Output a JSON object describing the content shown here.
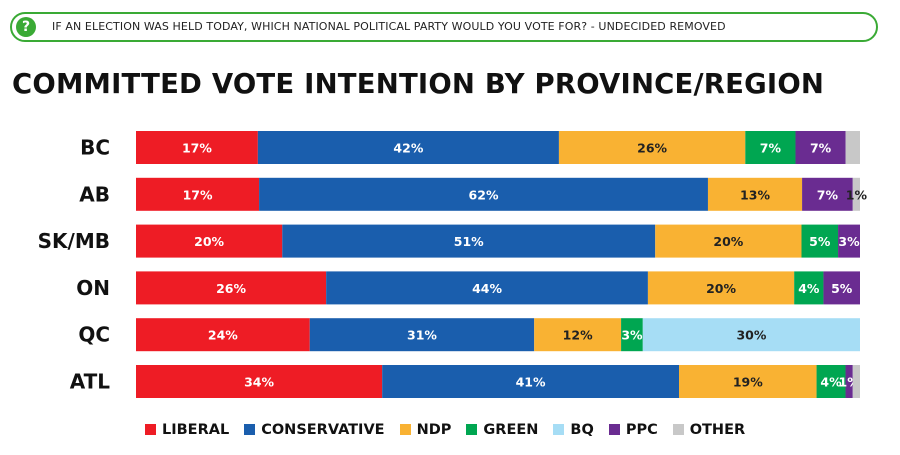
{
  "question": {
    "icon": "question-mark-icon",
    "icon_glyph": "?",
    "text": "IF AN ELECTION WAS HELD TODAY, WHICH NATIONAL POLITICAL PARTY WOULD YOU VOTE FOR? - UNDECIDED REMOVED"
  },
  "chart_data": {
    "type": "bar",
    "orientation": "horizontal",
    "stacked": true,
    "normalized": true,
    "title": "COMMITTED VOTE INTENTION BY PROVINCE/REGION",
    "categories": [
      "BC",
      "AB",
      "SK/MB",
      "ON",
      "QC",
      "ATL"
    ],
    "series": [
      {
        "name": "LIBERAL",
        "color": "#ee1c25",
        "values": [
          17,
          17,
          20,
          26,
          24,
          34
        ],
        "labels": [
          "17%",
          "17%",
          "20%",
          "26%",
          "24%",
          "34%"
        ]
      },
      {
        "name": "CONSERVATIVE",
        "color": "#1a5ead",
        "values": [
          42,
          62,
          51,
          44,
          31,
          41
        ],
        "labels": [
          "42%",
          "62%",
          "51%",
          "44%",
          "31%",
          "41%"
        ]
      },
      {
        "name": "NDP",
        "color": "#f9b233",
        "values": [
          26,
          13,
          20,
          20,
          12,
          19
        ],
        "labels": [
          "26%",
          "13%",
          "20%",
          "20%",
          "12%",
          "19%"
        ]
      },
      {
        "name": "GREEN",
        "color": "#00a651",
        "values": [
          7,
          0,
          5,
          4,
          3,
          4
        ],
        "labels": [
          "7%",
          "",
          "5%",
          "4%",
          "3%",
          "4%"
        ]
      },
      {
        "name": "BQ",
        "color": "#a6ddf5",
        "values": [
          0,
          0,
          0,
          0,
          30,
          0
        ],
        "labels": [
          "",
          "",
          "",
          "",
          "30%",
          ""
        ]
      },
      {
        "name": "PPC",
        "color": "#6a2c91",
        "values": [
          7,
          7,
          3,
          5,
          0,
          1
        ],
        "labels": [
          "7%",
          "7%",
          "3%",
          "5%",
          "",
          "1%"
        ]
      },
      {
        "name": "OTHER",
        "color": "#c8c8c8",
        "values": [
          2,
          1,
          0,
          0,
          0,
          1
        ],
        "labels": [
          "",
          "1%",
          "",
          "",
          "",
          ""
        ]
      }
    ],
    "legend_position": "bottom",
    "grid": false
  }
}
